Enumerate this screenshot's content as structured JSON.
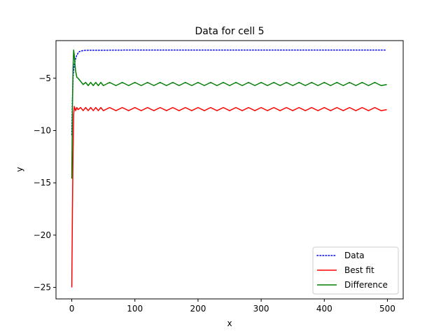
{
  "chart_data": {
    "type": "line",
    "title": "Data for cell 5",
    "xlabel": "x",
    "ylabel": "y",
    "xlim": [
      -25,
      525
    ],
    "ylim": [
      -26.1,
      -1.4
    ],
    "xticks": [
      0,
      100,
      200,
      300,
      400,
      500
    ],
    "yticks": [
      -25,
      -20,
      -15,
      -10,
      -5
    ],
    "grid": false,
    "legend_position": "lower-right",
    "series": [
      {
        "name": "Data",
        "color": "#0000ff",
        "style": "dotted",
        "x": [
          0,
          1,
          2,
          3,
          4,
          5,
          6,
          7,
          8,
          10,
          12,
          15,
          18,
          22,
          30,
          50,
          100,
          150,
          200,
          250,
          300,
          350,
          400,
          450,
          499
        ],
        "y": [
          -10.4,
          -7.0,
          -5.0,
          -4.2,
          -3.7,
          -3.4,
          -3.15,
          -2.95,
          -2.8,
          -2.6,
          -2.45,
          -2.4,
          -2.35,
          -2.33,
          -2.32,
          -2.32,
          -2.3,
          -2.3,
          -2.3,
          -2.3,
          -2.3,
          -2.3,
          -2.3,
          -2.3,
          -2.3
        ]
      },
      {
        "name": "Best fit",
        "color": "#ff0000",
        "style": "solid",
        "x": [
          0,
          1,
          2,
          3,
          4,
          5,
          6,
          8,
          10,
          14,
          18,
          22,
          26,
          30,
          34,
          38,
          42,
          46,
          50,
          60,
          70,
          80,
          90,
          100,
          110,
          120,
          130,
          140,
          150,
          160,
          170,
          180,
          190,
          200,
          210,
          220,
          230,
          240,
          250,
          260,
          270,
          280,
          290,
          300,
          310,
          320,
          330,
          340,
          350,
          360,
          370,
          380,
          390,
          400,
          410,
          420,
          430,
          440,
          450,
          460,
          470,
          480,
          490,
          499
        ],
        "y": [
          -25.0,
          -18.0,
          -12.0,
          -8.5,
          -7.7,
          -7.9,
          -8.1,
          -7.8,
          -8.0,
          -7.8,
          -8.1,
          -7.8,
          -8.1,
          -7.8,
          -8.1,
          -7.8,
          -8.1,
          -7.8,
          -8.1,
          -7.8,
          -8.1,
          -7.8,
          -8.1,
          -7.8,
          -8.1,
          -7.8,
          -8.1,
          -7.8,
          -8.1,
          -7.8,
          -8.1,
          -7.8,
          -8.1,
          -7.8,
          -8.1,
          -7.8,
          -8.1,
          -7.8,
          -8.1,
          -7.8,
          -8.1,
          -7.8,
          -8.1,
          -7.8,
          -8.1,
          -7.8,
          -8.1,
          -7.8,
          -8.1,
          -7.8,
          -8.1,
          -7.8,
          -8.1,
          -7.8,
          -8.1,
          -7.8,
          -8.1,
          -7.8,
          -8.1,
          -7.8,
          -8.1,
          -7.8,
          -8.1,
          -8.0
        ]
      },
      {
        "name": "Difference",
        "color": "#008000",
        "style": "solid",
        "x": [
          0,
          1,
          2,
          3,
          4,
          5,
          6,
          8,
          10,
          14,
          18,
          22,
          26,
          30,
          34,
          38,
          42,
          46,
          50,
          60,
          70,
          80,
          90,
          100,
          110,
          120,
          130,
          140,
          150,
          160,
          170,
          180,
          190,
          200,
          210,
          220,
          230,
          240,
          250,
          260,
          270,
          280,
          290,
          300,
          310,
          320,
          330,
          340,
          350,
          360,
          370,
          380,
          390,
          400,
          410,
          420,
          430,
          440,
          450,
          460,
          470,
          480,
          490,
          499
        ],
        "y": [
          -14.6,
          -8.0,
          -4.0,
          -2.3,
          -2.8,
          -3.6,
          -4.3,
          -4.9,
          -5.0,
          -5.3,
          -5.6,
          -5.4,
          -5.7,
          -5.4,
          -5.7,
          -5.4,
          -5.7,
          -5.4,
          -5.7,
          -5.4,
          -5.7,
          -5.4,
          -5.7,
          -5.4,
          -5.7,
          -5.4,
          -5.7,
          -5.4,
          -5.7,
          -5.4,
          -5.7,
          -5.4,
          -5.7,
          -5.4,
          -5.7,
          -5.4,
          -5.7,
          -5.4,
          -5.7,
          -5.4,
          -5.7,
          -5.4,
          -5.7,
          -5.4,
          -5.7,
          -5.4,
          -5.7,
          -5.4,
          -5.7,
          -5.4,
          -5.7,
          -5.4,
          -5.7,
          -5.4,
          -5.7,
          -5.4,
          -5.7,
          -5.4,
          -5.7,
          -5.4,
          -5.7,
          -5.4,
          -5.7,
          -5.6
        ]
      }
    ]
  }
}
